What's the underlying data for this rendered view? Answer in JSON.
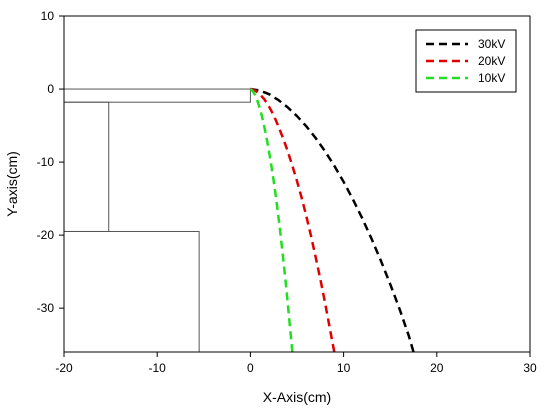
{
  "chart_data": {
    "type": "line",
    "xlabel": "X-Axis(cm)",
    "ylabel": "Y-axis(cm)",
    "xlim": [
      -20,
      30
    ],
    "ylim": [
      -36,
      10
    ],
    "xticks": [
      -20,
      -10,
      0,
      10,
      20,
      30
    ],
    "yticks": [
      -30,
      -20,
      -10,
      0,
      10
    ],
    "grid": false,
    "legend_position": "top-right",
    "series": [
      {
        "name": "30kV",
        "color": "#000000",
        "line_style": "dashed",
        "points": [
          [
            0,
            0
          ],
          [
            1,
            -0.2
          ],
          [
            2,
            -0.7
          ],
          [
            3,
            -1.5
          ],
          [
            4,
            -2.5
          ],
          [
            5,
            -3.7
          ],
          [
            6,
            -5.1
          ],
          [
            7,
            -6.7
          ],
          [
            8,
            -8.5
          ],
          [
            9,
            -10.5
          ],
          [
            10,
            -12.7
          ],
          [
            11,
            -15.1
          ],
          [
            12,
            -17.7
          ],
          [
            13,
            -20.5
          ],
          [
            14,
            -23.5
          ],
          [
            15,
            -26.7
          ],
          [
            16,
            -30.1
          ],
          [
            17,
            -33.8
          ],
          [
            17.5,
            -36
          ]
        ]
      },
      {
        "name": "20kV",
        "color": "#e00000",
        "line_style": "dashed",
        "points": [
          [
            0,
            0
          ],
          [
            0.5,
            -0.2
          ],
          [
            1,
            -0.7
          ],
          [
            1.5,
            -1.4
          ],
          [
            2,
            -2.4
          ],
          [
            2.5,
            -3.6
          ],
          [
            3,
            -5.1
          ],
          [
            3.5,
            -6.7
          ],
          [
            4,
            -8.5
          ],
          [
            4.5,
            -10.5
          ],
          [
            5,
            -12.6
          ],
          [
            5.5,
            -14.9
          ],
          [
            6,
            -17.4
          ],
          [
            6.5,
            -20.1
          ],
          [
            7,
            -23.0
          ],
          [
            7.5,
            -26.0
          ],
          [
            8,
            -29.2
          ],
          [
            8.5,
            -32.6
          ],
          [
            9,
            -36
          ]
        ]
      },
      {
        "name": "10kV",
        "color": "#22dd22",
        "line_style": "dashed",
        "points": [
          [
            0,
            0
          ],
          [
            0.25,
            -0.3
          ],
          [
            0.5,
            -0.8
          ],
          [
            0.75,
            -1.6
          ],
          [
            1,
            -2.6
          ],
          [
            1.25,
            -3.8
          ],
          [
            1.5,
            -5.2
          ],
          [
            1.75,
            -6.8
          ],
          [
            2,
            -8.6
          ],
          [
            2.25,
            -10.5
          ],
          [
            2.5,
            -12.6
          ],
          [
            2.75,
            -14.9
          ],
          [
            3,
            -17.4
          ],
          [
            3.25,
            -20.1
          ],
          [
            3.5,
            -23.0
          ],
          [
            3.75,
            -26.0
          ],
          [
            4,
            -29.2
          ],
          [
            4.25,
            -32.6
          ],
          [
            4.5,
            -36
          ]
        ]
      }
    ],
    "electrode_outline": {
      "color": "#555555",
      "rects": [
        {
          "x0": -20,
          "x1": 0,
          "y0": -1.8,
          "y1": 0
        },
        {
          "x0": -20,
          "x1": -15.2,
          "y0": -19.5,
          "y1": -1.8
        },
        {
          "x0": -20,
          "x1": -5.5,
          "y0": -36,
          "y1": -19.5
        }
      ]
    }
  }
}
